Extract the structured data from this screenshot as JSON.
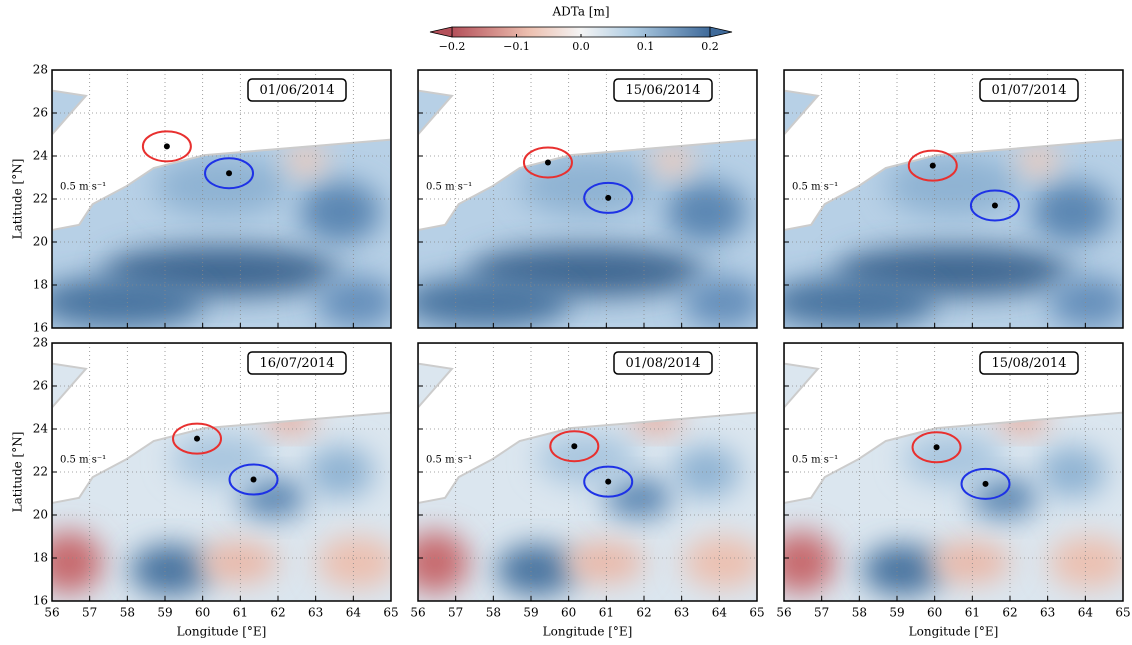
{
  "colorbar": {
    "label": "ADTa [m]",
    "lim": [
      -0.2,
      0.2
    ],
    "ticks": [
      {
        "value": -0.2,
        "label": "−0.2"
      },
      {
        "value": -0.1,
        "label": "−0.1"
      },
      {
        "value": 0,
        "label": "0.0"
      },
      0.1,
      0.2
    ]
  },
  "chart_data": [
    {
      "type": "scatter",
      "title": "01/06/2014",
      "scale_label": "0.5 m s⁻¹",
      "ylabel": "Latitude [°N]",
      "xlim": [
        56,
        65
      ],
      "ylim": [
        16,
        28
      ],
      "xticks": [
        56,
        57,
        58,
        59,
        60,
        61,
        62,
        63,
        64,
        65
      ],
      "yticks": [
        16,
        18,
        20,
        22,
        24,
        26,
        28
      ],
      "grid": true,
      "series": [
        {
          "color": "#e8302f",
          "x": [
            59.05
          ],
          "y": [
            24.45
          ]
        },
        {
          "color": "#1e32e6",
          "x": [
            60.7
          ],
          "y": [
            23.2
          ]
        }
      ]
    },
    {
      "type": "scatter",
      "title": "15/06/2014",
      "scale_label": "0.5 m s⁻¹",
      "xlim": [
        56,
        65
      ],
      "ylim": [
        16,
        28
      ],
      "xticks": [
        56,
        57,
        58,
        59,
        60,
        61,
        62,
        63,
        64,
        65
      ],
      "yticks": [
        16,
        18,
        20,
        22,
        24,
        26,
        28
      ],
      "grid": true,
      "series": [
        {
          "color": "#e8302f",
          "x": [
            59.45
          ],
          "y": [
            23.7
          ]
        },
        {
          "color": "#1e32e6",
          "x": [
            61.05
          ],
          "y": [
            22.05
          ]
        }
      ]
    },
    {
      "type": "scatter",
      "title": "01/07/2014",
      "scale_label": "0.5 m s⁻¹",
      "xlim": [
        56,
        65
      ],
      "ylim": [
        16,
        28
      ],
      "xticks": [
        56,
        57,
        58,
        59,
        60,
        61,
        62,
        63,
        64,
        65
      ],
      "yticks": [
        16,
        18,
        20,
        22,
        24,
        26,
        28
      ],
      "grid": true,
      "series": [
        {
          "color": "#e8302f",
          "x": [
            59.95
          ],
          "y": [
            23.55
          ]
        },
        {
          "color": "#1e32e6",
          "x": [
            61.6
          ],
          "y": [
            21.7
          ]
        }
      ]
    },
    {
      "type": "scatter",
      "title": "16/07/2014",
      "scale_label": "0.5 m s⁻¹",
      "ylabel": "Latitude [°N]",
      "xlabel": "Longitude [°E]",
      "xlim": [
        56,
        65
      ],
      "ylim": [
        16,
        28
      ],
      "xticks": [
        56,
        57,
        58,
        59,
        60,
        61,
        62,
        63,
        64,
        65
      ],
      "yticks": [
        16,
        18,
        20,
        22,
        24,
        26,
        28
      ],
      "grid": true,
      "series": [
        {
          "color": "#e8302f",
          "x": [
            59.85
          ],
          "y": [
            23.55
          ]
        },
        {
          "color": "#1e32e6",
          "x": [
            61.35
          ],
          "y": [
            21.65
          ]
        }
      ]
    },
    {
      "type": "scatter",
      "title": "01/08/2014",
      "scale_label": "0.5 m s⁻¹",
      "xlabel": "Longitude [°E]",
      "xlim": [
        56,
        65
      ],
      "ylim": [
        16,
        28
      ],
      "xticks": [
        56,
        57,
        58,
        59,
        60,
        61,
        62,
        63,
        64,
        65
      ],
      "yticks": [
        16,
        18,
        20,
        22,
        24,
        26,
        28
      ],
      "grid": true,
      "series": [
        {
          "color": "#e8302f",
          "x": [
            60.15
          ],
          "y": [
            23.2
          ]
        },
        {
          "color": "#1e32e6",
          "x": [
            61.05
          ],
          "y": [
            21.55
          ]
        }
      ]
    },
    {
      "type": "scatter",
      "title": "15/08/2014",
      "scale_label": "0.5 m s⁻¹",
      "xlabel": "Longitude [°E]",
      "xlim": [
        56,
        65
      ],
      "ylim": [
        16,
        28
      ],
      "xticks": [
        56,
        57,
        58,
        59,
        60,
        61,
        62,
        63,
        64,
        65
      ],
      "yticks": [
        16,
        18,
        20,
        22,
        24,
        26,
        28
      ],
      "grid": true,
      "series": [
        {
          "color": "#e8302f",
          "x": [
            60.05
          ],
          "y": [
            23.15
          ]
        },
        {
          "color": "#1e32e6",
          "x": [
            61.35
          ],
          "y": [
            21.45
          ]
        }
      ]
    }
  ]
}
